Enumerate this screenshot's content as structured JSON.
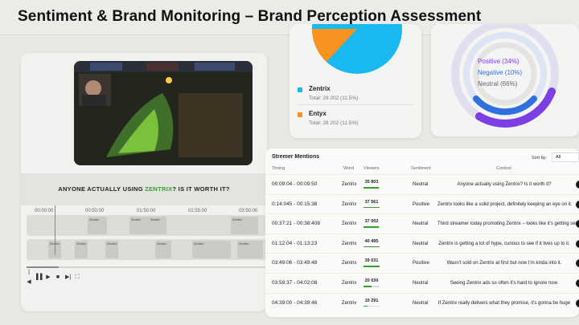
{
  "page": {
    "title": "Sentiment & Brand Monitoring – Brand Perception Assessment"
  },
  "pie": {
    "colors": [
      "#1ab8f0",
      "#f7931e"
    ],
    "legend": [
      {
        "name": "Zentrix",
        "total": "Total: 28 202 (11.5%)",
        "color": "#1ab8f0"
      },
      {
        "name": "Entyx",
        "total": "Total: 28 202 (11.5%)",
        "color": "#f7931e"
      }
    ]
  },
  "ring": {
    "items": [
      {
        "label": "Positive (34%)",
        "color": "#7b3fe4"
      },
      {
        "label": "Negative (10%)",
        "color": "#2f6fe0"
      },
      {
        "label": "Neutral (66%)",
        "color": "#666666"
      }
    ]
  },
  "video": {
    "caption_pre": "ANYONE ACTUALLY USING ",
    "caption_highlight": "ZENTRIX",
    "caption_post": "? IS IT WORTH IT?",
    "timeline_ticks": [
      "00:00:00",
      "00:50:00",
      "01:50:00",
      "02:55:00",
      "03:50:00"
    ],
    "clip_label": "Zentrix",
    "controls": [
      "|◀",
      "▌▌",
      "▶",
      "■",
      "▶|",
      "⛶"
    ]
  },
  "table": {
    "title": "Stremer Mentions",
    "sort_label": "Sort by:",
    "sort_value": "All",
    "headers": [
      "Timing",
      "Word",
      "Viewers",
      "Sentiment",
      "Context"
    ],
    "rows": [
      {
        "timing": "00:09:04 - 00:09:50",
        "word": "Zentrix",
        "viewers": "35 803",
        "viewer_fraction": 0.95,
        "sentiment": "Neutral",
        "context": "Anyone actually using Zentrix? Is it worth it?"
      },
      {
        "timing": "0:14:045 - 00:15:38",
        "word": "Zentrix",
        "viewers": "37 561",
        "viewer_fraction": 0.99,
        "sentiment": "Positive",
        "context": "Zentrix looks like a solid project, definitely keeping an eye on it."
      },
      {
        "timing": "00:37:21 - 00:38:408",
        "word": "Zentrix",
        "viewers": "37 002",
        "viewer_fraction": 0.97,
        "sentiment": "Neutral",
        "context": "Third streamer today promoting Zentrix – looks like it's getting serious."
      },
      {
        "timing": "01:12:04 - 01:13:23",
        "word": "Zentrix",
        "viewers": "40 495",
        "viewer_fraction": 1.0,
        "sentiment": "Neutral",
        "context": "Zentrix is getting a lot of hype, curious to see if it lives up to it."
      },
      {
        "timing": "03:49:06 - 03:49:48",
        "word": "Zentrix",
        "viewers": "39 031",
        "viewer_fraction": 0.98,
        "sentiment": "Positive",
        "context": "Wasn't sold on Zentrix at first but now I'm kinda into it."
      },
      {
        "timing": "03:59:37 - 04:02:08",
        "word": "Zentrix",
        "viewers": "20 030",
        "viewer_fraction": 0.5,
        "sentiment": "Neutral",
        "context": "Seeing Zentrix ads so often it's hard to ignore now."
      },
      {
        "timing": "04:39:00 - 04:39:46",
        "word": "Zentrix",
        "viewers": "10 291",
        "viewer_fraction": 0.26,
        "sentiment": "Neutral",
        "context": "If Zentrix really delivers what they promise, it's gonna be huge"
      }
    ]
  }
}
